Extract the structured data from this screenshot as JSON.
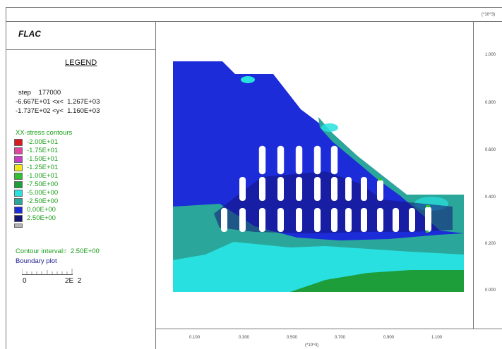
{
  "app": {
    "name": "FLAC"
  },
  "legend": {
    "title": "LEGEND",
    "step": "step    177000",
    "x_range": "-6.667E+01 <x<  1.267E+03",
    "y_range": "-1.737E+02 <y<  1.160E+03",
    "contours_title": "XX-stress contours",
    "contours": [
      {
        "label": "-2.00E+01",
        "color": "#d81b1b"
      },
      {
        "label": "-1.75E+01",
        "color": "#e046a0"
      },
      {
        "label": "-1.50E+01",
        "color": "#c83cc8"
      },
      {
        "label": "-1.25E+01",
        "color": "#f0e81a"
      },
      {
        "label": "-1.00E+01",
        "color": "#30c030"
      },
      {
        "label": "-7.50E+00",
        "color": "#1e9e3a"
      },
      {
        "label": "-5.00E+00",
        "color": "#28e0e0"
      },
      {
        "label": "-2.50E+00",
        "color": "#2aa79a"
      },
      {
        "label": "0.00E+00",
        "color": "#1c2cd8"
      },
      {
        "label": "2.50E+00",
        "color": "#141478"
      }
    ],
    "last_box_color": "#b4b4b4",
    "contour_interval": "Contour interval=  2.50E+00",
    "boundary_plot": "Boundary plot",
    "scale_left": "0",
    "scale_right": "2E  2"
  },
  "axes": {
    "top_multiplier": "(*10^3)",
    "bottom_multiplier": "(*10^3)",
    "y_ticks": [
      "1.000",
      "0.800",
      "0.600",
      "0.400",
      "0.200",
      "0.000"
    ],
    "x_ticks": [
      "0.100",
      "0.300",
      "0.500",
      "0.700",
      "0.900",
      "1.100"
    ]
  },
  "colors": {
    "deep_blue": "#1c2cd8",
    "teal": "#2aa79a",
    "cyan": "#28e0e0",
    "green": "#1e9e3a",
    "navy": "#141478"
  }
}
